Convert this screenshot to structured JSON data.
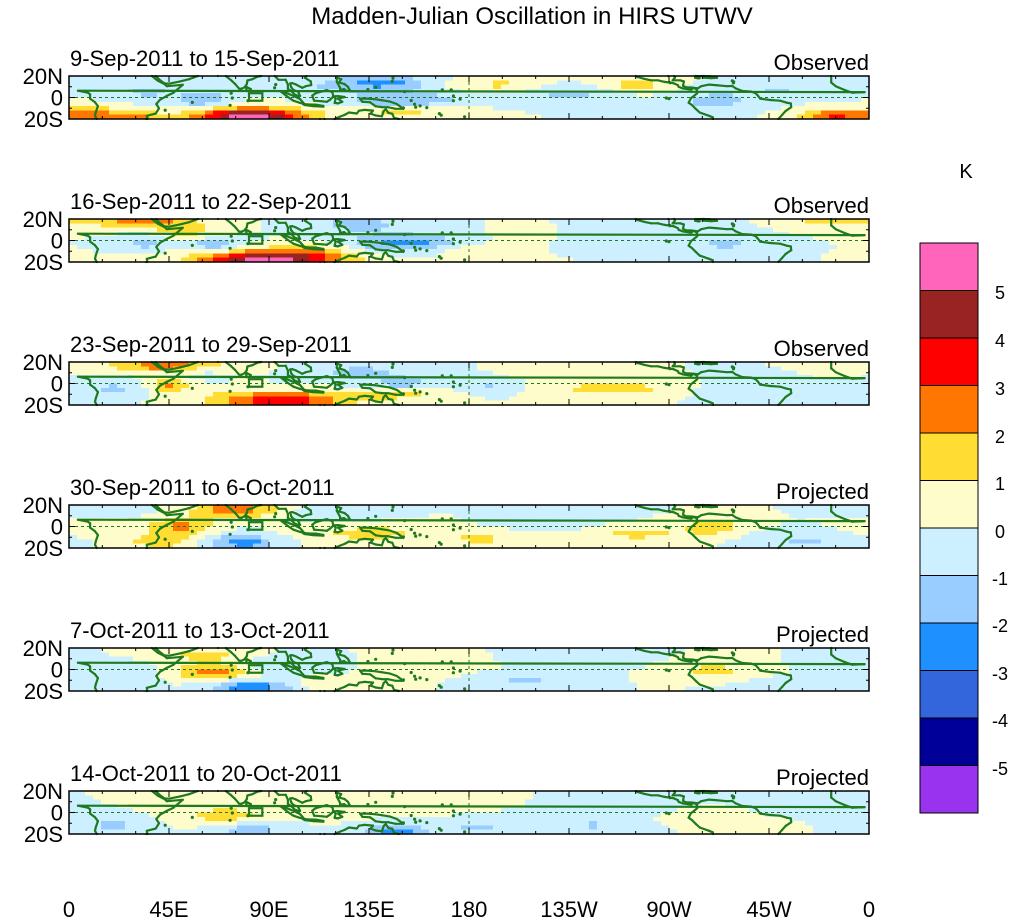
{
  "chart_data": {
    "type": "heatmap",
    "title": "Madden-Julian Oscillation in HIRS UTWV",
    "units": "K",
    "x_tick_labels": [
      "0",
      "45E",
      "90E",
      "135E",
      "180",
      "135W",
      "90W",
      "45W",
      "0"
    ],
    "y_tick_labels": [
      "20N",
      "0",
      "20S"
    ],
    "lon_range": [
      0,
      360
    ],
    "lat_range": [
      -20,
      20
    ],
    "panels": [
      {
        "period": "9-Sep-2011 to 15-Sep-2011",
        "status": "Observed"
      },
      {
        "period": "16-Sep-2011 to 22-Sep-2011",
        "status": "Observed"
      },
      {
        "period": "23-Sep-2011 to 29-Sep-2011",
        "status": "Observed"
      },
      {
        "period": "30-Sep-2011 to 6-Oct-2011",
        "status": "Projected"
      },
      {
        "period": "7-Oct-2011 to 13-Oct-2011",
        "status": "Projected"
      },
      {
        "period": "14-Oct-2011 to 20-Oct-2011",
        "status": "Projected"
      }
    ],
    "colorbar": {
      "labels": [
        "5",
        "4",
        "3",
        "2",
        "1",
        "0",
        "-1",
        "-2",
        "-3",
        "-4",
        "-5"
      ],
      "levels": [
        -5,
        -4,
        -3,
        -2,
        -1,
        0,
        1,
        2,
        3,
        4,
        5
      ],
      "colors": [
        "#9933ee",
        "#000099",
        "#3366dd",
        "#1e90ff",
        "#99ccff",
        "#ccf0ff",
        "#fffccc",
        "#ffdd33",
        "#ff7700",
        "#ff0000",
        "#992222",
        "#ff66bb"
      ]
    }
  }
}
